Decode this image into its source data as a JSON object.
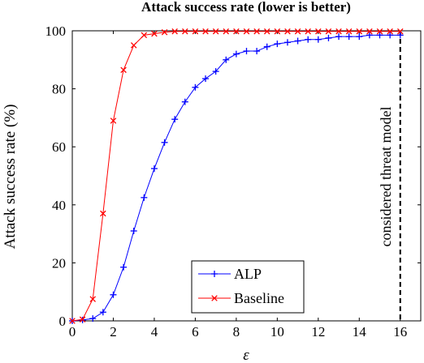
{
  "chart_data": {
    "type": "line",
    "title": "Attack success rate (lower is better)",
    "xlabel": "ε",
    "ylabel": "Attack success rate (%)",
    "xlim": [
      0,
      17
    ],
    "ylim": [
      0,
      100
    ],
    "xticks": [
      0,
      2,
      4,
      6,
      8,
      10,
      12,
      14,
      16
    ],
    "yticks": [
      0,
      20,
      40,
      60,
      80,
      100
    ],
    "grid": false,
    "legend_position": "bottom-center",
    "series": [
      {
        "name": "ALP",
        "color": "#0000ff",
        "marker": "plus",
        "x": [
          0,
          0.5,
          1,
          1.5,
          2,
          2.5,
          3,
          3.5,
          4,
          4.5,
          5,
          5.5,
          6,
          6.5,
          7,
          7.5,
          8,
          8.5,
          9,
          9.5,
          10,
          10.5,
          11,
          11.5,
          12,
          12.5,
          13,
          13.5,
          14,
          14.5,
          15,
          15.5,
          16
        ],
        "y": [
          0,
          0.3,
          0.8,
          3,
          9,
          18.5,
          31,
          42.5,
          52.5,
          61.5,
          69.5,
          75.5,
          80.5,
          83.5,
          86,
          90,
          92,
          93,
          93,
          94.5,
          95.5,
          96,
          96.5,
          97,
          97,
          97.5,
          98,
          98,
          98,
          98.5,
          98.5,
          98.5,
          98.5
        ]
      },
      {
        "name": "Baseline",
        "color": "#ff0000",
        "marker": "x",
        "x": [
          0,
          0.5,
          1,
          1.5,
          2,
          2.5,
          3,
          3.5,
          4,
          4.5,
          5,
          5.5,
          6,
          6.5,
          7,
          7.5,
          8,
          8.5,
          9,
          9.5,
          10,
          10.5,
          11,
          11.5,
          12,
          12.5,
          13,
          13.5,
          14,
          14.5,
          15,
          15.5,
          16
        ],
        "y": [
          0,
          0.5,
          7.5,
          37,
          69,
          86.5,
          95,
          98.5,
          99,
          99.5,
          99.8,
          99.8,
          99.8,
          99.8,
          99.8,
          99.8,
          99.8,
          99.8,
          99.8,
          99.8,
          99.8,
          99.8,
          99.8,
          99.8,
          99.8,
          99.8,
          99.8,
          99.8,
          99.8,
          99.8,
          99.8,
          99.8,
          99.8
        ]
      }
    ],
    "threshold": {
      "x": 16,
      "label": "considered threat model",
      "style": "dashed",
      "color": "#000000"
    }
  }
}
